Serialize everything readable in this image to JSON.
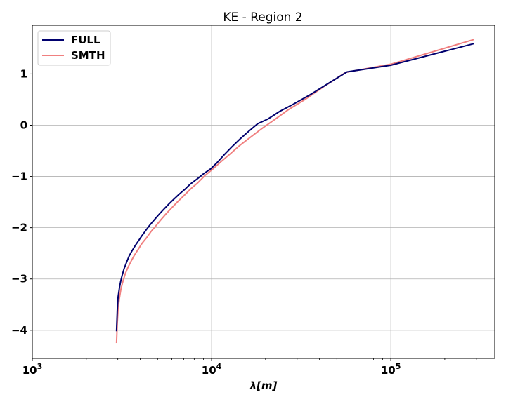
{
  "chart_data": {
    "type": "line",
    "title": "KE - Region 2",
    "xlabel": "λ[m]",
    "ylabel": "",
    "xscale": "log",
    "xlim": [
      1000,
      380000
    ],
    "ylim": [
      -4.55,
      1.95
    ],
    "grid": true,
    "legend_position": "top-left",
    "x_ticks": [
      {
        "value": 1000,
        "base": "10",
        "exp": "3"
      },
      {
        "value": 10000,
        "base": "10",
        "exp": "4"
      },
      {
        "value": 100000,
        "base": "10",
        "exp": "5"
      }
    ],
    "y_ticks": [
      {
        "value": 1,
        "label": "1"
      },
      {
        "value": 0,
        "label": "0"
      },
      {
        "value": -1,
        "label": "−1"
      },
      {
        "value": -2,
        "label": "−2"
      },
      {
        "value": -3,
        "label": "−3"
      },
      {
        "value": -4,
        "label": "−4"
      }
    ],
    "series": [
      {
        "name": "FULL",
        "color": "#00006e",
        "x": [
          2950,
          2980,
          3010,
          3060,
          3110,
          3170,
          3250,
          3350,
          3470,
          3600,
          3750,
          3920,
          4100,
          4300,
          4520,
          4780,
          5060,
          5380,
          5730,
          6130,
          6580,
          7100,
          7600,
          8300,
          9000,
          9900,
          10800,
          11800,
          13000,
          14400,
          16100,
          18100,
          20600,
          24000,
          28600,
          35300,
          45500,
          57000,
          100000,
          290000
        ],
        "y": [
          -4.02,
          -3.6,
          -3.35,
          -3.18,
          -3.05,
          -2.93,
          -2.8,
          -2.68,
          -2.55,
          -2.45,
          -2.35,
          -2.25,
          -2.15,
          -2.05,
          -1.95,
          -1.85,
          -1.75,
          -1.65,
          -1.55,
          -1.45,
          -1.35,
          -1.25,
          -1.15,
          -1.05,
          -0.95,
          -0.85,
          -0.72,
          -0.57,
          -0.42,
          -0.27,
          -0.12,
          0.03,
          0.12,
          0.27,
          0.41,
          0.59,
          0.83,
          1.04,
          1.17,
          1.59
        ]
      },
      {
        "name": "SMTH",
        "color": "#f08080",
        "x": [
          2950,
          2980,
          3010,
          3060,
          3120,
          3200,
          3300,
          3420,
          3560,
          3720,
          3900,
          4100,
          4330,
          4580,
          4870,
          5200,
          5570,
          6000,
          6480,
          7030,
          7660,
          8400,
          9200,
          10200,
          11300,
          12700,
          14300,
          16400,
          19000,
          22500,
          27000,
          33500,
          43000,
          56000,
          100000,
          290000
        ],
        "y": [
          -4.25,
          -3.85,
          -3.58,
          -3.38,
          -3.2,
          -3.05,
          -2.9,
          -2.77,
          -2.65,
          -2.53,
          -2.42,
          -2.3,
          -2.2,
          -2.08,
          -1.97,
          -1.85,
          -1.73,
          -1.61,
          -1.49,
          -1.37,
          -1.24,
          -1.12,
          -0.98,
          -0.85,
          -0.71,
          -0.56,
          -0.4,
          -0.24,
          -0.07,
          0.11,
          0.31,
          0.51,
          0.77,
          1.03,
          1.19,
          1.67
        ]
      }
    ]
  }
}
